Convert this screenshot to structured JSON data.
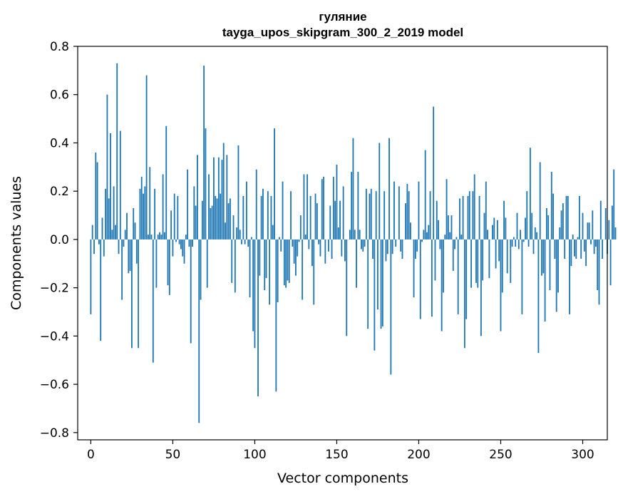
{
  "chart_data": {
    "type": "bar",
    "title": "гуляние",
    "subtitle": "tayga_upos_skipgram_300_2_2019 model",
    "xlabel": "Vector components",
    "ylabel": "Components values",
    "xlim": [
      -8,
      315
    ],
    "ylim": [
      -0.83,
      0.8
    ],
    "xticks": [
      0,
      50,
      100,
      150,
      200,
      250,
      300
    ],
    "yticks": [
      -0.8,
      -0.6,
      -0.4,
      -0.2,
      0.0,
      0.2,
      0.4,
      0.6,
      0.8
    ],
    "ytick_labels": [
      "−0.8",
      "−0.6",
      "−0.4",
      "−0.2",
      "0.0",
      "0.2",
      "0.4",
      "0.6",
      "0.8"
    ],
    "grid": false,
    "bar_color": "#1f77b4",
    "values": [
      -0.31,
      0.06,
      -0.06,
      0.36,
      0.32,
      -0.02,
      -0.42,
      0.09,
      -0.07,
      0.21,
      0.6,
      0.17,
      0.44,
      0.04,
      0.22,
      0.06,
      0.73,
      -0.06,
      0.45,
      -0.25,
      -0.03,
      0.04,
      0.11,
      -0.14,
      -0.13,
      -0.45,
      0.13,
      0.07,
      -0.1,
      -0.45,
      0.21,
      0.26,
      0.19,
      0.22,
      0.68,
      0.02,
      0.3,
      0.02,
      -0.51,
      0.21,
      -0.2,
      0.02,
      0.03,
      0.02,
      0.27,
      0.03,
      0.47,
      -0.19,
      -0.23,
      0.12,
      -0.07,
      0.19,
      -0.01,
      0.18,
      -0.02,
      -0.04,
      -0.07,
      -0.1,
      0.02,
      0.29,
      -0.03,
      -0.43,
      -0.03,
      0.22,
      0.14,
      0.35,
      -0.76,
      -0.25,
      0.16,
      0.72,
      0.46,
      -0.2,
      0.27,
      0.13,
      0.14,
      0.34,
      0.18,
      0.17,
      0.34,
      0.19,
      0.33,
      0.4,
      0.07,
      0.35,
      0.15,
      0.17,
      -0.18,
      0.1,
      -0.22,
      0.05,
      0.39,
      0.04,
      -0.02,
      0.18,
      -0.02,
      0.24,
      -0.03,
      -0.24,
      0.01,
      -0.38,
      -0.45,
      0.29,
      -0.65,
      -0.15,
      0.18,
      0.21,
      -0.21,
      -0.16,
      0.2,
      -0.27,
      0.18,
      0.06,
      0.46,
      -0.63,
      -0.26,
      0.01,
      -0.05,
      0.24,
      -0.19,
      -0.2,
      -0.17,
      -0.18,
      0.2,
      -0.03,
      -0.1,
      -0.15,
      -0.07,
      -0.01,
      0.1,
      -0.25,
      0.27,
      0.02,
      0.27,
      -0.04,
      0.18,
      -0.11,
      -0.27,
      0.19,
      0.15,
      -0.02,
      -0.07,
      0.25,
      0.26,
      -0.1,
      0.0,
      -0.05,
      0.14,
      -0.08,
      0.26,
      0.16,
      0.31,
      0.05,
      0.16,
      -0.07,
      0.22,
      -0.09,
      -0.4,
      0.0,
      0.04,
      0.28,
      0.42,
      0.04,
      -0.2,
      0.28,
      0.04,
      -0.04,
      -0.05,
      -0.03,
      0.21,
      -0.37,
      0.19,
      0.21,
      -0.08,
      -0.46,
      0.2,
      -0.29,
      0.4,
      -0.37,
      -0.36,
      0.2,
      -0.09,
      -0.06,
      0.42,
      -0.56,
      -0.06,
      0.24,
      -0.03,
      0.0,
      0.22,
      -0.05,
      -0.08,
      0.0,
      0.15,
      0.23,
      0.2,
      0.07,
      0.0,
      -0.24,
      -0.08,
      -0.05,
      0.24,
      -0.33,
      -0.01,
      0.04,
      0.37,
      0.03,
      0.06,
      0.2,
      -0.32,
      0.55,
      -0.17,
      0.16,
      0.08,
      -0.04,
      -0.38,
      -0.22,
      0.02,
      0.25,
      0.1,
      0.03,
      0.1,
      -0.13,
      -0.04,
      0.01,
      -0.31,
      0.17,
      0.02,
      0.18,
      -0.45,
      -0.33,
      0.18,
      0.2,
      -0.2,
      0.2,
      0.27,
      -0.18,
      -0.2,
      0.18,
      -0.4,
      -0.17,
      0.11,
      0.24,
      0.04,
      -0.16,
      0.0,
      0.06,
      0.09,
      -0.12,
      0.08,
      -0.09,
      -0.38,
      -0.22,
      0.16,
      0.09,
      -0.14,
      0.0,
      -0.18,
      -0.03,
      0.01,
      -0.03,
      0.11,
      -0.04,
      0.04,
      -0.31,
      -0.01,
      0.09,
      0.2,
      -0.03,
      0.38,
      0.11,
      -0.06,
      0.05,
      0.03,
      -0.47,
      0.32,
      -0.15,
      -0.14,
      -0.34,
      0.13,
      0.1,
      -0.21,
      0.28,
      0.19,
      -0.08,
      -0.3,
      -0.22,
      0.05,
      0.12,
      0.15,
      -0.08,
      0.18,
      0.18,
      -0.31,
      -0.11,
      0.02,
      -0.07,
      -0.08,
      0.01,
      0.18,
      -0.08,
      0.11,
      -0.05,
      -0.11,
      0.07,
      0.07,
      -0.02,
      0.12,
      -0.06,
      -0.03,
      -0.21,
      -0.27,
      0.16,
      -0.08,
      0.0,
      0.13,
      -0.06,
      0.08,
      -0.19,
      0.14,
      0.29,
      0.05
    ]
  }
}
